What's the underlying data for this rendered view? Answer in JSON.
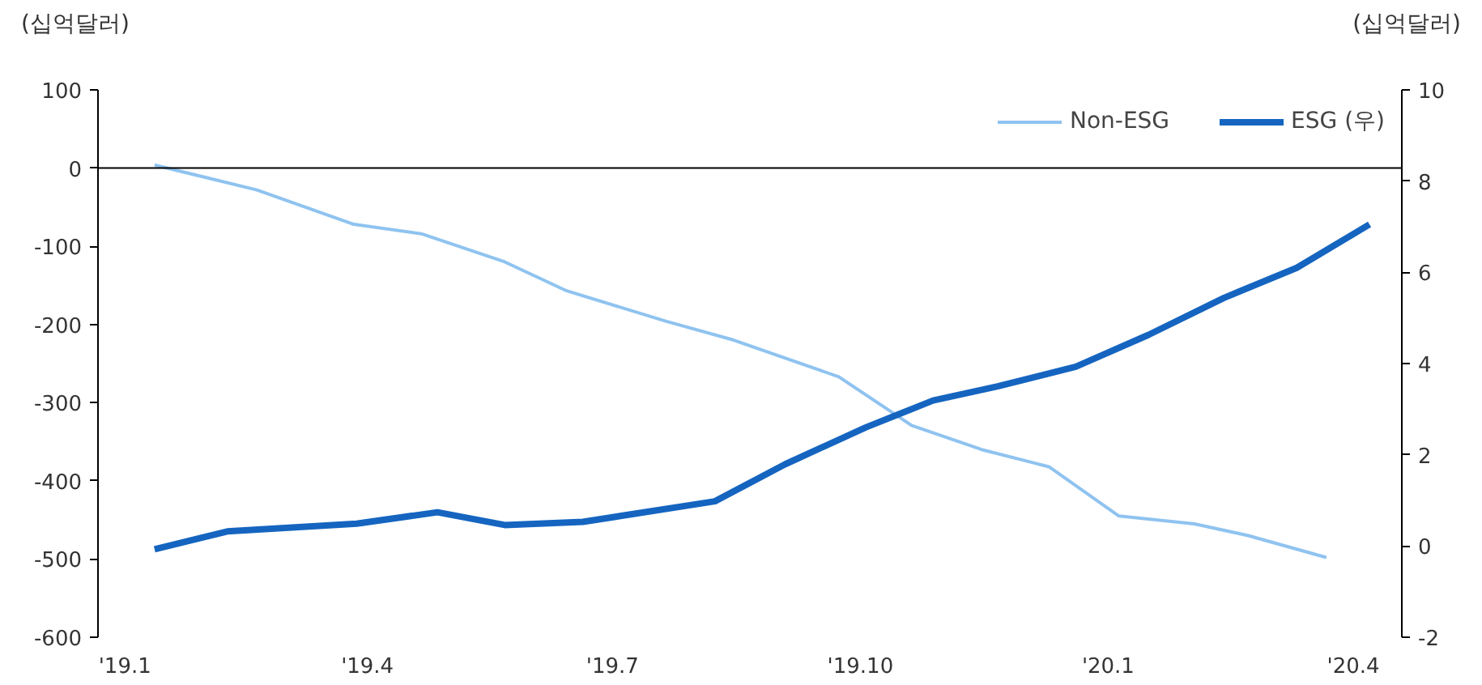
{
  "chart_data": {
    "type": "line",
    "ylabel": "(십억달러)",
    "y2label": "(십억달러)",
    "xlim": [
      "2018-12-22",
      "2020-04-19"
    ],
    "xticks": [
      {
        "value": "2019-01-01",
        "label": "'19.1"
      },
      {
        "value": "2019-04-01",
        "label": "'19.4"
      },
      {
        "value": "2019-07-01",
        "label": "'19.7"
      },
      {
        "value": "2019-10-01",
        "label": "'19.10"
      },
      {
        "value": "2020-01-01",
        "label": "'20.1"
      },
      {
        "value": "2020-04-01",
        "label": "'20.4"
      }
    ],
    "ylim": [
      -600,
      100
    ],
    "yticks": [
      -600,
      -500,
      -400,
      -300,
      -200,
      -100,
      0,
      100
    ],
    "y2lim": [
      -2,
      10
    ],
    "y2ticks": [
      -2,
      0,
      2,
      4,
      6,
      8,
      10
    ],
    "grid": false,
    "legend": "top right",
    "line_style": "solid",
    "marker": "none",
    "ref_lines": [
      {
        "axis": "y",
        "value": 0,
        "color": "#000000"
      }
    ],
    "series": [
      {
        "name": "Non-ESG",
        "color": "#8fc3f0",
        "x": [
          "2019-01-12",
          "2019-02-19",
          "2019-03-27",
          "2019-04-21",
          "2019-05-22",
          "2019-06-14",
          "2019-07-21",
          "2019-08-15",
          "2019-09-23",
          "2019-10-20",
          "2019-11-15",
          "2019-12-10",
          "2020-01-05",
          "2020-02-02",
          "2020-02-22",
          "2020-03-22"
        ],
        "values": [
          4,
          -28,
          -72,
          -84,
          -120,
          -157,
          -196,
          -220,
          -267,
          -329,
          -360,
          -382,
          -445,
          -455,
          -470,
          -498
        ]
      },
      {
        "name": "ESG (우)",
        "color": "#1565c0",
        "axis": "y2",
        "x": [
          "2019-01-12",
          "2019-02-08",
          "2019-03-28",
          "2019-04-27",
          "2019-05-22",
          "2019-06-20",
          "2019-08-08",
          "2019-09-03",
          "2019-10-03",
          "2019-10-28",
          "2019-11-21",
          "2019-12-20",
          "2020-01-16",
          "2020-02-13",
          "2020-03-11",
          "2020-04-07"
        ],
        "values": [
          -0.07,
          0.32,
          0.49,
          0.74,
          0.46,
          0.53,
          0.98,
          1.79,
          2.6,
          3.19,
          3.5,
          3.93,
          4.63,
          5.44,
          6.1,
          7.05
        ]
      }
    ]
  }
}
